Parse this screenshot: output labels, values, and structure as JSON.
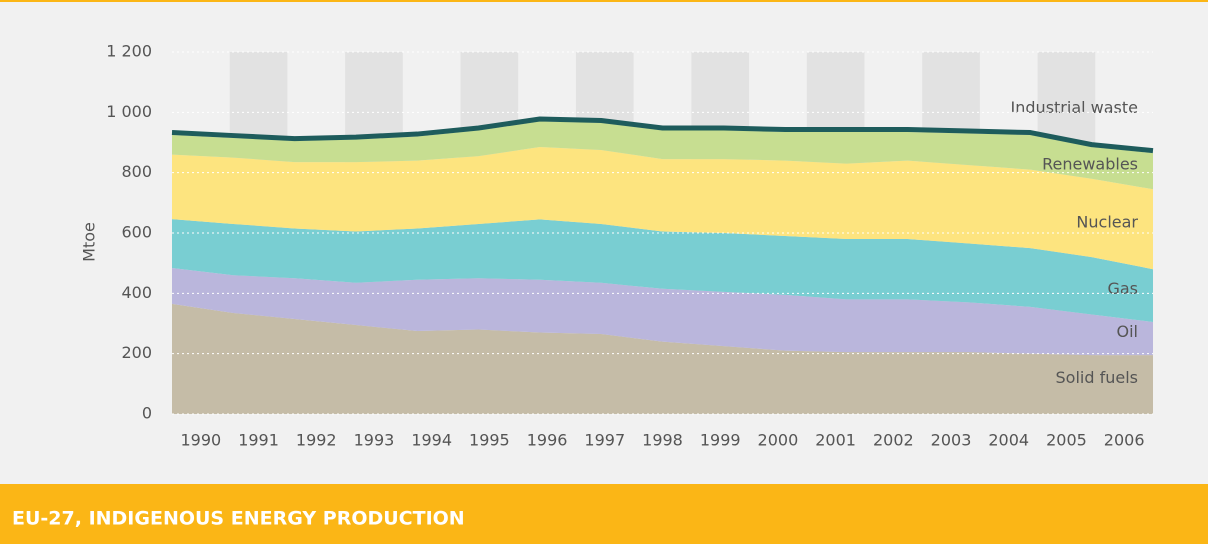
{
  "chart_data": {
    "type": "stacked_area",
    "title": "EU-27, INDIGENOUS ENERGY PRODUCTION",
    "y_label": "Mtoe",
    "categories": [
      "1990",
      "1991",
      "1992",
      "1993",
      "1994",
      "1995",
      "1996",
      "1997",
      "1998",
      "1999",
      "2000",
      "2001",
      "2002",
      "2003",
      "2004",
      "2005",
      "2006"
    ],
    "ylim": [
      0,
      1200
    ],
    "yticks": [
      0,
      200,
      400,
      600,
      800,
      {
        "value": 1000,
        "label": "1 000"
      },
      {
        "value": 1200,
        "label": "1 200"
      }
    ],
    "grid": true,
    "series": [
      {
        "name": "Solid fuels",
        "color": "#c5bca7",
        "values": [
          365,
          335,
          315,
          295,
          275,
          280,
          270,
          265,
          240,
          225,
          210,
          205,
          205,
          205,
          200,
          195,
          195
        ]
      },
      {
        "name": "Oil",
        "color": "#bab6dc",
        "values": [
          119,
          125,
          135,
          140,
          170,
          170,
          175,
          170,
          175,
          180,
          185,
          175,
          175,
          165,
          155,
          135,
          110
        ]
      },
      {
        "name": "Gas",
        "color": "#79ced2",
        "values": [
          162,
          170,
          165,
          170,
          170,
          180,
          200,
          195,
          190,
          195,
          195,
          200,
          200,
          195,
          195,
          190,
          175
        ]
      },
      {
        "name": "Nuclear",
        "color": "#fde47f",
        "values": [
          214,
          220,
          220,
          230,
          225,
          225,
          240,
          245,
          240,
          245,
          250,
          250,
          260,
          260,
          260,
          260,
          265
        ]
      },
      {
        "name": "Renewables",
        "color": "#c7de91",
        "values": [
          65,
          65,
          70,
          75,
          80,
          85,
          85,
          90,
          95,
          95,
          95,
          105,
          95,
          105,
          115,
          105,
          120
        ]
      },
      {
        "name": "Industrial waste",
        "color": "#1e5c5c",
        "values": [
          8,
          8,
          8,
          8,
          8,
          8,
          8,
          8,
          8,
          8,
          8,
          8,
          8,
          8,
          8,
          8,
          8
        ]
      }
    ]
  }
}
